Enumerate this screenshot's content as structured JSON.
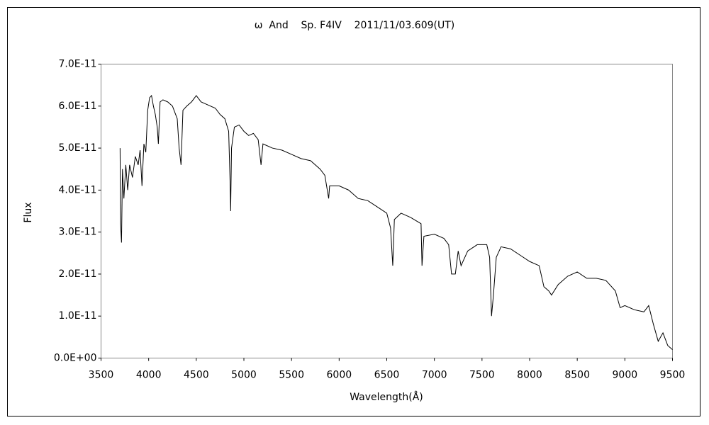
{
  "chart_data": {
    "type": "line",
    "title": "ω  And    Sp. F4IV    2011/11/03.609(UT)",
    "x_label": "Wavelength(Å)",
    "y_label": "Flux",
    "color": "#000000",
    "grid": false,
    "xlim": [
      3500,
      9500
    ],
    "xticks": [
      3500,
      4000,
      4500,
      5000,
      5500,
      6000,
      6500,
      7000,
      7500,
      8000,
      8500,
      9000,
      9500
    ],
    "ylim": [
      0,
      7e-11
    ],
    "yticks": [
      {
        "value": 0,
        "label": "0.0E+00"
      },
      {
        "value": 1e-11,
        "label": "1.0E-11"
      },
      {
        "value": 2e-11,
        "label": "2.0E-11"
      },
      {
        "value": 3e-11,
        "label": "3.0E-11"
      },
      {
        "value": 4e-11,
        "label": "4.0E-11"
      },
      {
        "value": 5e-11,
        "label": "5.0E-11"
      },
      {
        "value": 6e-11,
        "label": "6.0E-11"
      },
      {
        "value": 7e-11,
        "label": "7.0E-11"
      }
    ],
    "x": [
      3700,
      3705,
      3715,
      3725,
      3740,
      3760,
      3780,
      3800,
      3830,
      3860,
      3890,
      3910,
      3930,
      3950,
      3970,
      3990,
      4010,
      4030,
      4050,
      4070,
      4090,
      4102,
      4120,
      4150,
      4200,
      4250,
      4300,
      4320,
      4340,
      4360,
      4400,
      4450,
      4500,
      4550,
      4600,
      4650,
      4700,
      4750,
      4800,
      4840,
      4855,
      4861,
      4870,
      4900,
      4950,
      5000,
      5050,
      5100,
      5150,
      5180,
      5200,
      5300,
      5400,
      5500,
      5600,
      5700,
      5800,
      5850,
      5890,
      5900,
      6000,
      6100,
      6200,
      6300,
      6400,
      6500,
      6540,
      6563,
      6580,
      6650,
      6750,
      6860,
      6870,
      6890,
      7000,
      7100,
      7150,
      7180,
      7220,
      7250,
      7280,
      7350,
      7450,
      7550,
      7580,
      7600,
      7620,
      7650,
      7700,
      7800,
      7900,
      8000,
      8100,
      8150,
      8200,
      8230,
      8300,
      8400,
      8500,
      8600,
      8700,
      8800,
      8900,
      8950,
      9000,
      9100,
      9200,
      9250,
      9300,
      9350,
      9400,
      9450,
      9500
    ],
    "values": [
      5e-11,
      3.2e-11,
      2.75e-11,
      4.5e-11,
      3.8e-11,
      4.6e-11,
      4e-11,
      4.6e-11,
      4.3e-11,
      4.8e-11,
      4.6e-11,
      4.95e-11,
      4.1e-11,
      5.1e-11,
      4.9e-11,
      5.9e-11,
      6.2e-11,
      6.25e-11,
      6e-11,
      5.8e-11,
      5.5e-11,
      5.1e-11,
      6.1e-11,
      6.15e-11,
      6.1e-11,
      6e-11,
      5.7e-11,
      5e-11,
      4.6e-11,
      5.9e-11,
      6e-11,
      6.1e-11,
      6.25e-11,
      6.1e-11,
      6.05e-11,
      6e-11,
      5.95e-11,
      5.8e-11,
      5.7e-11,
      5.4e-11,
      4.2e-11,
      3.5e-11,
      5e-11,
      5.5e-11,
      5.55e-11,
      5.4e-11,
      5.3e-11,
      5.35e-11,
      5.2e-11,
      4.6e-11,
      5.1e-11,
      5e-11,
      4.95e-11,
      4.85e-11,
      4.75e-11,
      4.7e-11,
      4.5e-11,
      4.35e-11,
      3.8e-11,
      4.1e-11,
      4.1e-11,
      4e-11,
      3.8e-11,
      3.75e-11,
      3.6e-11,
      3.45e-11,
      3.1e-11,
      2.2e-11,
      3.3e-11,
      3.45e-11,
      3.35e-11,
      3.2e-11,
      2.2e-11,
      2.9e-11,
      2.95e-11,
      2.85e-11,
      2.7e-11,
      2e-11,
      2e-11,
      2.55e-11,
      2.2e-11,
      2.55e-11,
      2.7e-11,
      2.7e-11,
      2.4e-11,
      1e-11,
      1.5e-11,
      2.4e-11,
      2.65e-11,
      2.6e-11,
      2.45e-11,
      2.3e-11,
      2.2e-11,
      1.7e-11,
      1.6e-11,
      1.5e-11,
      1.75e-11,
      1.95e-11,
      2.05e-11,
      1.9e-11,
      1.9e-11,
      1.85e-11,
      1.6e-11,
      1.2e-11,
      1.25e-11,
      1.15e-11,
      1.1e-11,
      1.25e-11,
      8e-12,
      4e-12,
      6e-12,
      3e-12,
      2e-12
    ]
  }
}
